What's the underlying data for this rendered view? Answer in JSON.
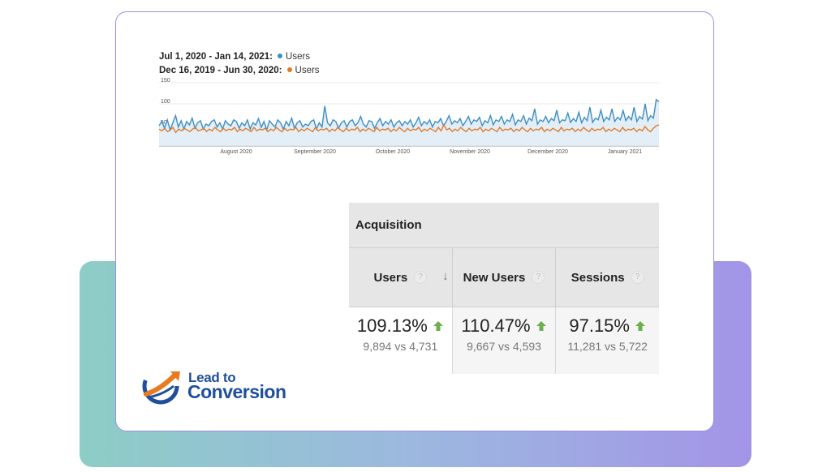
{
  "legend": [
    {
      "range": "Jul 1, 2020 - Jan 14, 2021:",
      "metric": "Users",
      "color": "#3d8fc4"
    },
    {
      "range": "Dec 16, 2019 - Jun 30, 2020:",
      "metric": "Users",
      "color": "#e07b2a"
    }
  ],
  "chart_data": {
    "type": "line",
    "y_ticks": [
      "150",
      "100",
      "50"
    ],
    "ylim": [
      0,
      150
    ],
    "x_tick_labels": [
      "August 2020",
      "September 2020",
      "October 2020",
      "November 2020",
      "December 2020",
      "January 2021"
    ],
    "series": [
      {
        "name": "Users",
        "period": "Jul 1, 2020 - Jan 14, 2021",
        "color": "#3d8fc4",
        "values": [
          48,
          58,
          42,
          62,
          38,
          55,
          72,
          45,
          60,
          40,
          58,
          50,
          66,
          42,
          55,
          60,
          40,
          52,
          48,
          58,
          62,
          45,
          55,
          40,
          60,
          52,
          48,
          62,
          58,
          42,
          55,
          48,
          62,
          40,
          55,
          50,
          65,
          44,
          58,
          38,
          60,
          52,
          45,
          62,
          55,
          40,
          58,
          48,
          66,
          42,
          55,
          60,
          45,
          52,
          48,
          58,
          62,
          40,
          55,
          45,
          95,
          55,
          48,
          62,
          58,
          42,
          55,
          60,
          45,
          58,
          62,
          48,
          55,
          70,
          52,
          45,
          60,
          58,
          42,
          55,
          65,
          48,
          58,
          52,
          62,
          45,
          55,
          60,
          48,
          58,
          52,
          62,
          45,
          55,
          68,
          48,
          58,
          52,
          62,
          45,
          58,
          55,
          65,
          48,
          58,
          72,
          52,
          60,
          55,
          65,
          48,
          58,
          70,
          52,
          62,
          58,
          68,
          48,
          60,
          55,
          72,
          50,
          62,
          58,
          70,
          52,
          62,
          58,
          75,
          50,
          62,
          58,
          72,
          52,
          66,
          60,
          88,
          52,
          62,
          58,
          70,
          55,
          65,
          60,
          85,
          55,
          62,
          60,
          78,
          56,
          65,
          58,
          80,
          55,
          68,
          60,
          92,
          56,
          66,
          62,
          85,
          58,
          68,
          62,
          88,
          58,
          68,
          62,
          84,
          60,
          70,
          62,
          92,
          58,
          70,
          64,
          100,
          60,
          72,
          66,
          110,
          105
        ]
      },
      {
        "name": "Users",
        "period": "Dec 16, 2019 - Jun 30, 2020",
        "color": "#e07b2a",
        "values": [
          40,
          36,
          42,
          34,
          38,
          44,
          32,
          40,
          36,
          42,
          38,
          34,
          40,
          44,
          36,
          38,
          42,
          34,
          40,
          36,
          44,
          38,
          34,
          42,
          36,
          40,
          38,
          44,
          34,
          40,
          36,
          42,
          38,
          34,
          44,
          36,
          40,
          38,
          42,
          34,
          40,
          36,
          44,
          38,
          34,
          42,
          36,
          40,
          38,
          44,
          34,
          40,
          36,
          42,
          38,
          34,
          44,
          36,
          40,
          38,
          42,
          34,
          40,
          36,
          44,
          38,
          34,
          42,
          36,
          40,
          38,
          44,
          34,
          40,
          36,
          42,
          38,
          34,
          44,
          36,
          40,
          38,
          42,
          34,
          40,
          36,
          44,
          38,
          34,
          42,
          36,
          40,
          38,
          44,
          34,
          40,
          36,
          42,
          38,
          34,
          44,
          36,
          50,
          38,
          42,
          34,
          40,
          36,
          44,
          38,
          34,
          42,
          36,
          40,
          38,
          44,
          34,
          40,
          36,
          42,
          38,
          34,
          44,
          36,
          40,
          38,
          42,
          34,
          40,
          36,
          44,
          38,
          34,
          42,
          36,
          40,
          38,
          44,
          34,
          40,
          36,
          42,
          38,
          34,
          44,
          36,
          40,
          38,
          42,
          34,
          40,
          36,
          44,
          38,
          34,
          42,
          36,
          40,
          38,
          44,
          34,
          40,
          36,
          42,
          38,
          34,
          44,
          36,
          40,
          38,
          42,
          34,
          40,
          36,
          46,
          38,
          34,
          42,
          48,
          50
        ]
      }
    ]
  },
  "acquisition": {
    "title": "Acquisition",
    "columns": [
      {
        "label": "Users",
        "pct": "109.13%",
        "compare": "9,894 vs 4,731"
      },
      {
        "label": "New Users",
        "pct": "110.47%",
        "compare": "9,667 vs 4,593"
      },
      {
        "label": "Sessions",
        "pct": "97.15%",
        "compare": "11,281 vs 5,722"
      }
    ],
    "help_glyph": "?",
    "sort_glyph": "↓",
    "up_color": "#6ab04c"
  },
  "logo": {
    "line1": "Lead to",
    "line2": "Conversion"
  }
}
